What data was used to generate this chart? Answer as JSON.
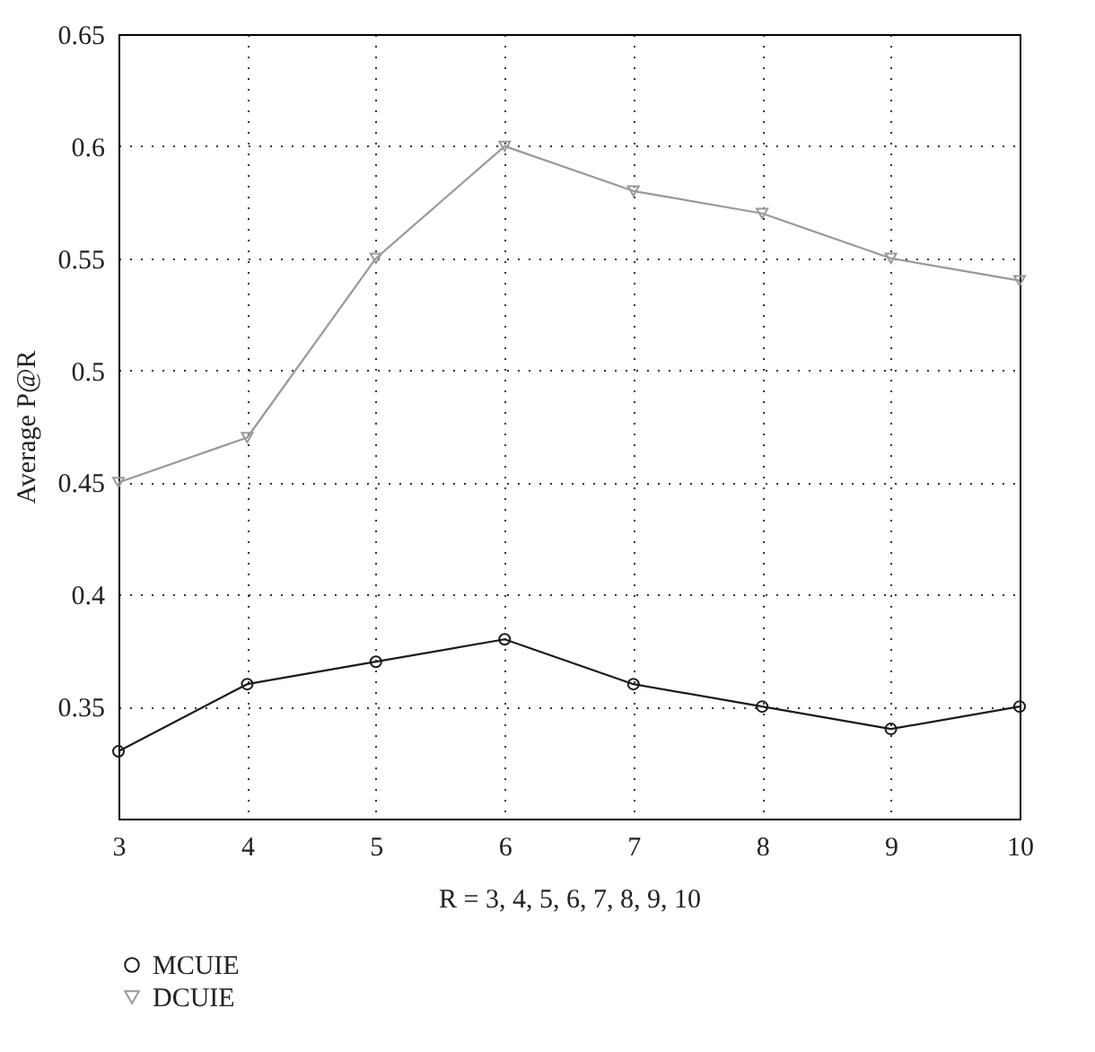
{
  "chart_data": {
    "type": "line",
    "xlabel": "R = 3, 4, 5, 6, 7, 8, 9, 10",
    "ylabel": "Average P@R",
    "x": [
      3,
      4,
      5,
      6,
      7,
      8,
      9,
      10
    ],
    "series": [
      {
        "name": "MCUIE",
        "color": "#1a1a1a",
        "marker": "circle",
        "values": [
          0.33,
          0.36,
          0.37,
          0.38,
          0.36,
          0.35,
          0.34,
          0.35
        ]
      },
      {
        "name": "DCUIE",
        "color": "#999999",
        "marker": "triangle",
        "values": [
          0.45,
          0.47,
          0.55,
          0.6,
          0.58,
          0.57,
          0.55,
          0.54
        ]
      }
    ],
    "xlim": [
      3,
      10
    ],
    "xticks": [
      3,
      4,
      5,
      6,
      7,
      8,
      9,
      10
    ],
    "ylim": [
      0.3,
      0.65
    ],
    "yticks": [
      0.35,
      0.4,
      0.45,
      0.5,
      0.55,
      0.6,
      0.65
    ],
    "grid": true,
    "legend": "bottom",
    "line_style": "solid"
  }
}
